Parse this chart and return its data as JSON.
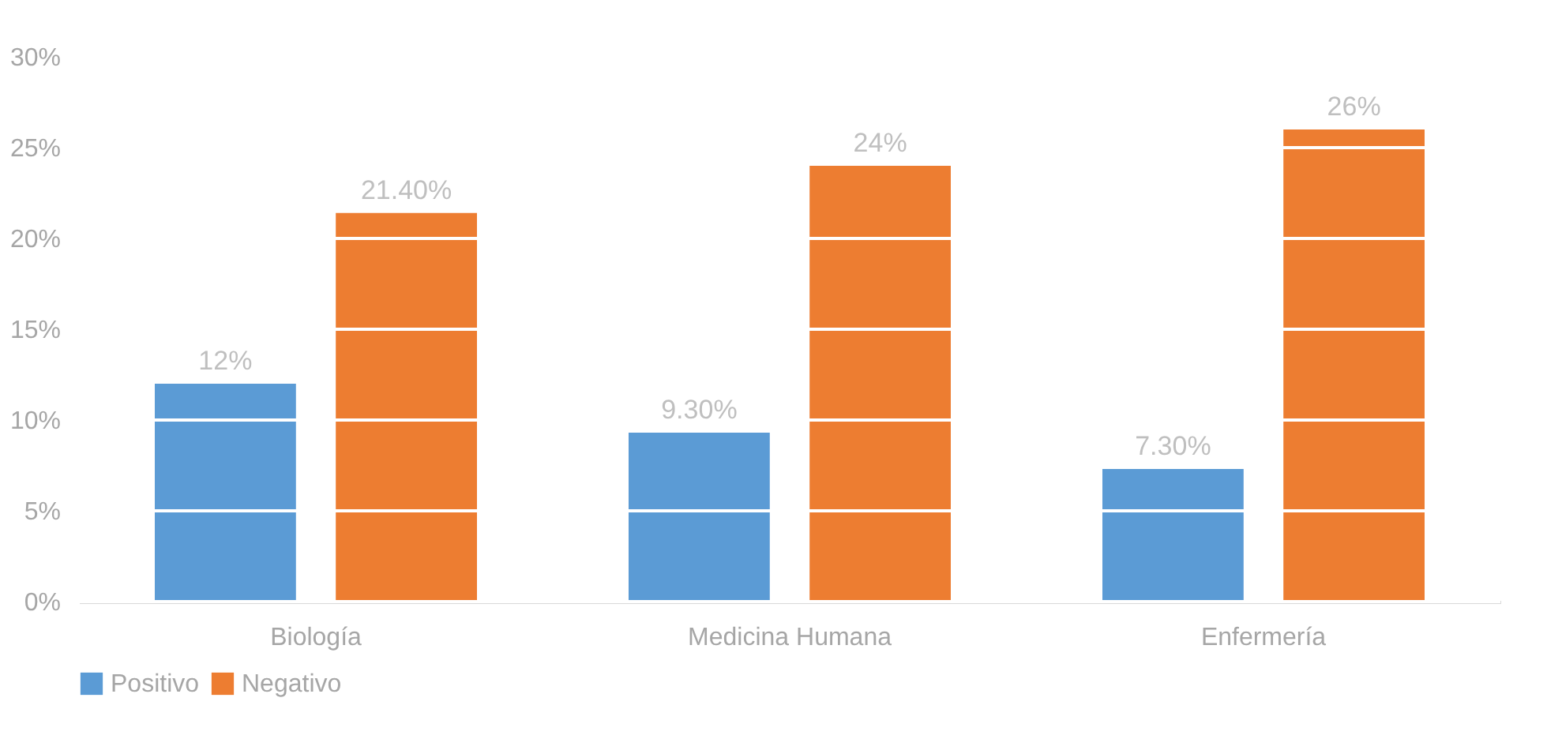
{
  "chart_data": {
    "type": "bar",
    "categories": [
      "Biología",
      "Medicina Humana",
      "Enfermería"
    ],
    "series": [
      {
        "name": "Positivo",
        "color": "#5b9bd5",
        "values": [
          12,
          9.3,
          7.3
        ],
        "value_labels": [
          "12%",
          "9.30%",
          "7.30%"
        ]
      },
      {
        "name": "Negativo",
        "color": "#ed7d31",
        "values": [
          21.4,
          24,
          26
        ],
        "value_labels": [
          "21.40%",
          "24%",
          "26%"
        ]
      }
    ],
    "ylim": [
      0,
      30
    ],
    "yticks": [
      {
        "value": 0,
        "label": "0%"
      },
      {
        "value": 5,
        "label": "5%"
      },
      {
        "value": 10,
        "label": "10%"
      },
      {
        "value": 15,
        "label": "15%"
      },
      {
        "value": 20,
        "label": "20%"
      },
      {
        "value": 25,
        "label": "25%"
      },
      {
        "value": 30,
        "label": "30%"
      }
    ],
    "grid": "y",
    "legend": "bottom"
  }
}
